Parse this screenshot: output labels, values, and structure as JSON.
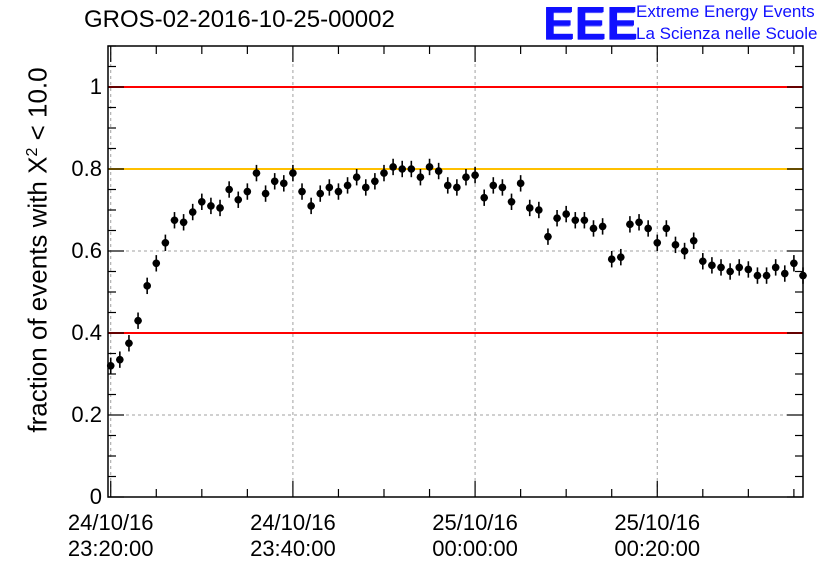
{
  "title": "GROS-02-2016-10-25-00002",
  "logo": {
    "mark": "EEE",
    "line1": "Extreme Energy Events",
    "line2": "La Scienza nelle Scuole"
  },
  "colors": {
    "axis": "#000000",
    "grid": "#a0a0a0",
    "marker": "#000000",
    "ref_red": "#ff0000",
    "ref_orange": "#ffc000",
    "logo_blue": "#1010ff"
  },
  "chart_data": {
    "type": "scatter",
    "title": "GROS-02-2016-10-25-00002",
    "ylabel_text": "fraction of events with X",
    "ylabel_sup": "2",
    "ylabel_tail": " < 10.0",
    "xlim": [
      -0.3,
      76.0
    ],
    "ylim": [
      0,
      1.1
    ],
    "yticks": [
      {
        "value": 0,
        "label": "0"
      },
      {
        "value": 0.2,
        "label": "0.2"
      },
      {
        "value": 0.4,
        "label": "0.4"
      },
      {
        "value": 0.6,
        "label": "0.6"
      },
      {
        "value": 0.8,
        "label": "0.8"
      },
      {
        "value": 1.0,
        "label": "1"
      }
    ],
    "xticks": [
      {
        "value": 0,
        "date": "24/10/16",
        "time": "23:20:00"
      },
      {
        "value": 20,
        "date": "24/10/16",
        "time": "23:40:00"
      },
      {
        "value": 40,
        "date": "25/10/16",
        "time": "00:00:00"
      },
      {
        "value": 60,
        "date": "25/10/16",
        "time": "00:20:00"
      }
    ],
    "grid": true,
    "reference_lines": [
      {
        "y": 1.0,
        "color": "#ff0000"
      },
      {
        "y": 0.8,
        "color": "#ffc000"
      },
      {
        "y": 0.4,
        "color": "#ff0000"
      }
    ],
    "points": [
      [
        0,
        0.32
      ],
      [
        1,
        0.335
      ],
      [
        2,
        0.375
      ],
      [
        3,
        0.43
      ],
      [
        4,
        0.515
      ],
      [
        5,
        0.57
      ],
      [
        6,
        0.62
      ],
      [
        7,
        0.675
      ],
      [
        8,
        0.67
      ],
      [
        9,
        0.695
      ],
      [
        10,
        0.72
      ],
      [
        11,
        0.71
      ],
      [
        12,
        0.705
      ],
      [
        13,
        0.75
      ],
      [
        14,
        0.725
      ],
      [
        15,
        0.745
      ],
      [
        16,
        0.79
      ],
      [
        17,
        0.74
      ],
      [
        18,
        0.77
      ],
      [
        19,
        0.765
      ],
      [
        20,
        0.79
      ],
      [
        21,
        0.745
      ],
      [
        22,
        0.71
      ],
      [
        23,
        0.74
      ],
      [
        24,
        0.755
      ],
      [
        25,
        0.745
      ],
      [
        26,
        0.76
      ],
      [
        27,
        0.78
      ],
      [
        28,
        0.755
      ],
      [
        29,
        0.77
      ],
      [
        30,
        0.79
      ],
      [
        31,
        0.805
      ],
      [
        32,
        0.8
      ],
      [
        33,
        0.8
      ],
      [
        34,
        0.78
      ],
      [
        35,
        0.805
      ],
      [
        36,
        0.795
      ],
      [
        37,
        0.76
      ],
      [
        38,
        0.755
      ],
      [
        39,
        0.78
      ],
      [
        40,
        0.785
      ],
      [
        41,
        0.73
      ],
      [
        42,
        0.76
      ],
      [
        43,
        0.755
      ],
      [
        44,
        0.72
      ],
      [
        45,
        0.765
      ],
      [
        46,
        0.705
      ],
      [
        47,
        0.7
      ],
      [
        48,
        0.635
      ],
      [
        49,
        0.68
      ],
      [
        50,
        0.69
      ],
      [
        51,
        0.675
      ],
      [
        52,
        0.675
      ],
      [
        53,
        0.655
      ],
      [
        54,
        0.66
      ],
      [
        55,
        0.58
      ],
      [
        56,
        0.585
      ],
      [
        57,
        0.665
      ],
      [
        58,
        0.67
      ],
      [
        59,
        0.655
      ],
      [
        60,
        0.62
      ],
      [
        61,
        0.655
      ],
      [
        62,
        0.615
      ],
      [
        63,
        0.6
      ],
      [
        64,
        0.625
      ],
      [
        65,
        0.575
      ],
      [
        66,
        0.565
      ],
      [
        67,
        0.56
      ],
      [
        68,
        0.55
      ],
      [
        69,
        0.56
      ],
      [
        70,
        0.555
      ],
      [
        71,
        0.54
      ],
      [
        72,
        0.54
      ],
      [
        73,
        0.56
      ],
      [
        74,
        0.545
      ],
      [
        75,
        0.57
      ],
      [
        76,
        0.54
      ]
    ],
    "yerr": 0.02,
    "xerr": 0.4
  }
}
